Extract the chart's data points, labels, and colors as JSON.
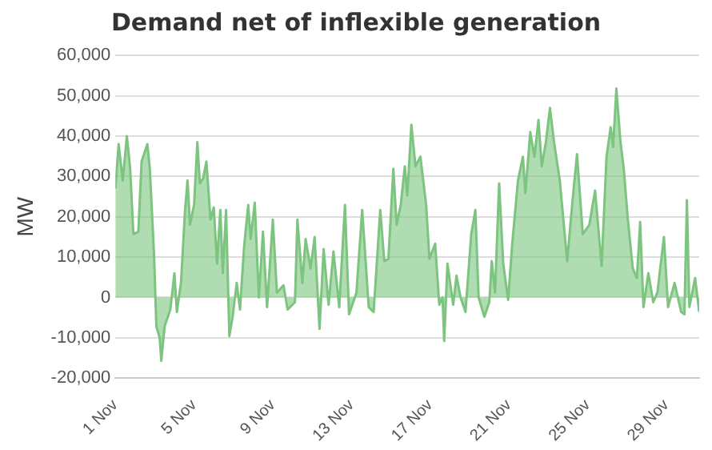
{
  "chart_data": {
    "type": "area",
    "title": "Demand net of inflexible generation",
    "ylabel": "MW",
    "x": [
      "--11-01T00:00",
      "--11-01T04:00",
      "--11-01T09:00",
      "--11-01T14:00",
      "--11-01T18:00",
      "--11-01T22:00",
      "--11-02T04:00",
      "--11-02T08:00",
      "--11-02T15:00",
      "--11-02T18:00",
      "--11-02T23:00",
      "--11-03T02:00",
      "--11-03T06:00",
      "--11-03T08:00",
      "--11-03T12:00",
      "--11-03T19:00",
      "--11-04T00:00",
      "--11-04T03:00",
      "--11-04T08:00",
      "--11-04T13:00",
      "--11-04T16:00",
      "--11-04T19:00",
      "--11-05T00:00",
      "--11-05T04:00",
      "--11-05T07:00",
      "--11-05T11:00",
      "--11-05T15:00",
      "--11-05T20:00",
      "--11-06T00:00",
      "--11-06T04:00",
      "--11-06T08:00",
      "--11-06T11:00",
      "--11-06T15:00",
      "--11-06T19:00",
      "--11-06T23:00",
      "--11-07T04:00",
      "--11-07T08:00",
      "--11-07T13:00",
      "--11-07T18:00",
      "--11-07T21:00",
      "--11-08T02:00",
      "--11-08T07:00",
      "--11-08T12:00",
      "--11-08T17:00",
      "--11-09T00:00",
      "--11-09T05:00",
      "--11-09T13:00",
      "--11-09T18:00",
      "--11-10T03:00",
      "--11-10T06:00",
      "--11-10T12:00",
      "--11-10T16:00",
      "--11-10T22:00",
      "--11-11T03:00",
      "--11-11T09:00",
      "--11-11T14:00",
      "--11-11T20:00",
      "--11-12T02:00",
      "--11-12T09:00",
      "--11-12T16:00",
      "--11-12T21:00",
      "--11-13T06:00",
      "--11-13T13:00",
      "--11-13T21:00",
      "--11-14T03:00",
      "--11-14T11:00",
      "--11-14T16:00",
      "--11-14T21:00",
      "--11-15T03:00",
      "--11-15T07:00",
      "--11-15T12:00",
      "--11-15T17:00",
      "--11-15T20:00",
      "--11-16T01:00",
      "--11-16T06:00",
      "--11-16T12:00",
      "--11-16T19:00",
      "--11-16T23:00",
      "--11-17T06:00",
      "--11-17T11:00",
      "--11-17T15:00",
      "--11-17T17:00",
      "--11-17T21:00",
      "--11-18T04:00",
      "--11-18T08:00",
      "--11-18T13:00",
      "--11-18T19:00",
      "--11-19T02:00",
      "--11-19T07:00",
      "--11-19T11:00",
      "--11-19T18:00",
      "--11-20T00:00",
      "--11-20T03:00",
      "--11-20T07:00",
      "--11-20T12:00",
      "--11-20T17:00",
      "--11-20T23:00",
      "--11-21T04:00",
      "--11-21T11:00",
      "--11-21T17:00",
      "--11-21T20:00",
      "--11-22T02:00",
      "--11-22T07:00",
      "--11-22T12:00",
      "--11-22T16:00",
      "--11-22T21:00",
      "--11-23T02:00",
      "--11-23T07:00",
      "--11-23T14:00",
      "--11-23T23:00",
      "--11-24T05:00",
      "--11-24T11:00",
      "--11-24T18:00",
      "--11-25T02:00",
      "--11-25T09:00",
      "--11-25T17:00",
      "--11-25T23:00",
      "--11-26T04:00",
      "--11-26T07:00",
      "--11-26T11:00",
      "--11-26T16:00",
      "--11-26T20:00",
      "--11-27T01:00",
      "--11-27T07:00",
      "--11-27T12:00",
      "--11-27T16:00",
      "--11-27T20:00",
      "--11-28T02:00",
      "--11-28T08:00",
      "--11-28T13:00",
      "--11-28T21:00",
      "--11-29T02:00",
      "--11-29T10:00",
      "--11-29T18:00",
      "--11-29T22:00",
      "--11-30T01:00",
      "--11-30T04:00",
      "--11-30T11:00",
      "--11-30T16:00"
    ],
    "series": [
      {
        "color": "#7cc47f",
        "values": [
          27000,
          38000,
          29000,
          40000,
          32000,
          15700,
          16300,
          33700,
          38000,
          32000,
          11400,
          -7200,
          -10000,
          -15700,
          -7200,
          -3000,
          6000,
          -3600,
          3600,
          21700,
          29000,
          18000,
          23000,
          38500,
          28300,
          29500,
          33700,
          19300,
          22300,
          8400,
          21700,
          6000,
          21700,
          -9600,
          -4800,
          3600,
          -3000,
          12600,
          22900,
          14500,
          23500,
          0,
          16300,
          -2400,
          19300,
          1200,
          3000,
          -3000,
          -1200,
          19300,
          3600,
          14500,
          7200,
          15000,
          -7800,
          12000,
          -1800,
          11400,
          -2400,
          22900,
          -4200,
          1200,
          21700,
          -2400,
          -3600,
          21700,
          9000,
          9600,
          31900,
          18000,
          22900,
          32500,
          25300,
          42800,
          32500,
          34900,
          22900,
          9600,
          13300,
          -1800,
          0,
          -10800,
          8400,
          -1800,
          5400,
          0,
          -3600,
          15700,
          21700,
          0,
          -4800,
          -1200,
          9000,
          1200,
          28300,
          8400,
          -600,
          13300,
          29000,
          34900,
          25900,
          41000,
          34900,
          44000,
          32500,
          38500,
          47000,
          38500,
          29000,
          9000,
          22900,
          35500,
          15700,
          18000,
          26500,
          7800,
          34900,
          42200,
          37300,
          51800,
          38500,
          31900,
          19300,
          7200,
          4800,
          18700,
          -2400,
          6000,
          -1200,
          1200,
          15000,
          -2400,
          3600,
          -3600,
          -4200,
          24100,
          -2400,
          4800,
          -3600
        ]
      }
    ],
    "xlim": [
      "--11-01T00:00",
      "--11-30T16:00"
    ],
    "xticks": [
      {
        "value": "--11-01",
        "label": "1 Nov"
      },
      {
        "value": "--11-05",
        "label": "5 Nov"
      },
      {
        "value": "--11-09",
        "label": "9 Nov"
      },
      {
        "value": "--11-13",
        "label": "13 Nov"
      },
      {
        "value": "--11-17",
        "label": "17 Nov"
      },
      {
        "value": "--11-21",
        "label": "21 Nov"
      },
      {
        "value": "--11-25",
        "label": "25 Nov"
      },
      {
        "value": "--11-29",
        "label": "29 Nov"
      }
    ],
    "ylim": [
      -20000,
      60000
    ],
    "yticks": [
      {
        "value": -20000,
        "label": "-20,000"
      },
      {
        "value": -10000,
        "label": "-10,000"
      },
      {
        "value": 0,
        "label": "0"
      },
      {
        "value": 10000,
        "label": "10,000"
      },
      {
        "value": 20000,
        "label": "20,000"
      },
      {
        "value": 30000,
        "label": "30,000"
      },
      {
        "value": 40000,
        "label": "40,000"
      },
      {
        "value": 50000,
        "label": "50,000"
      },
      {
        "value": 60000,
        "label": "60,000"
      }
    ],
    "grid": "y",
    "legend": false,
    "marker": "none",
    "line_style": "solid"
  }
}
